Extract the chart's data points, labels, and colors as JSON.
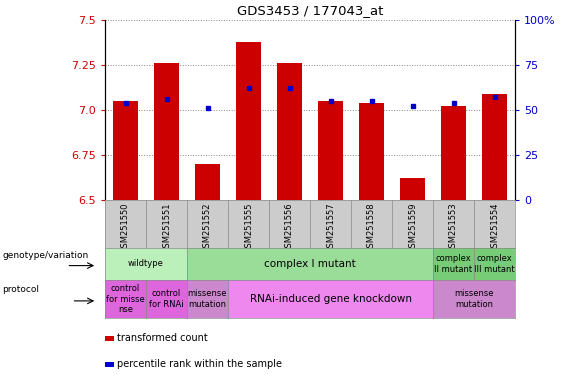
{
  "title": "GDS3453 / 177043_at",
  "samples": [
    "GSM251550",
    "GSM251551",
    "GSM251552",
    "GSM251555",
    "GSM251556",
    "GSM251557",
    "GSM251558",
    "GSM251559",
    "GSM251553",
    "GSM251554"
  ],
  "red_values": [
    7.05,
    7.26,
    6.7,
    7.38,
    7.26,
    7.05,
    7.04,
    6.62,
    7.02,
    7.09
  ],
  "blue_values": [
    54,
    56,
    51,
    62,
    62,
    55,
    55,
    52,
    54,
    57
  ],
  "ylim_left": [
    6.5,
    7.5
  ],
  "ylim_right": [
    0,
    100
  ],
  "yticks_left": [
    6.5,
    6.75,
    7.0,
    7.25,
    7.5
  ],
  "yticks_right": [
    0,
    25,
    50,
    75,
    100
  ],
  "bar_color": "#cc0000",
  "dot_color": "#0000cc",
  "base_value": 6.5,
  "genotype_row": [
    {
      "label": "wildtype",
      "start": 0,
      "end": 2,
      "color": "#bbf0bb"
    },
    {
      "label": "complex I mutant",
      "start": 2,
      "end": 8,
      "color": "#99dd99"
    },
    {
      "label": "complex\nII mutant",
      "start": 8,
      "end": 9,
      "color": "#77cc77"
    },
    {
      "label": "complex\nIII mutant",
      "start": 9,
      "end": 10,
      "color": "#77cc77"
    }
  ],
  "protocol_row": [
    {
      "label": "control\nfor misse\nnse",
      "start": 0,
      "end": 1,
      "color": "#dd66dd"
    },
    {
      "label": "control\nfor RNAi",
      "start": 1,
      "end": 2,
      "color": "#dd66dd"
    },
    {
      "label": "missense\nmutation",
      "start": 2,
      "end": 3,
      "color": "#cc88cc"
    },
    {
      "label": "RNAi-induced gene knockdown",
      "start": 3,
      "end": 8,
      "color": "#ee88ee"
    },
    {
      "label": "missense\nmutation",
      "start": 8,
      "end": 10,
      "color": "#cc88cc"
    }
  ],
  "legend_items": [
    {
      "color": "#cc0000",
      "label": "transformed count"
    },
    {
      "color": "#0000cc",
      "label": "percentile rank within the sample"
    }
  ],
  "tick_bg_color": "#cccccc",
  "chart_bg_color": "#ffffff"
}
